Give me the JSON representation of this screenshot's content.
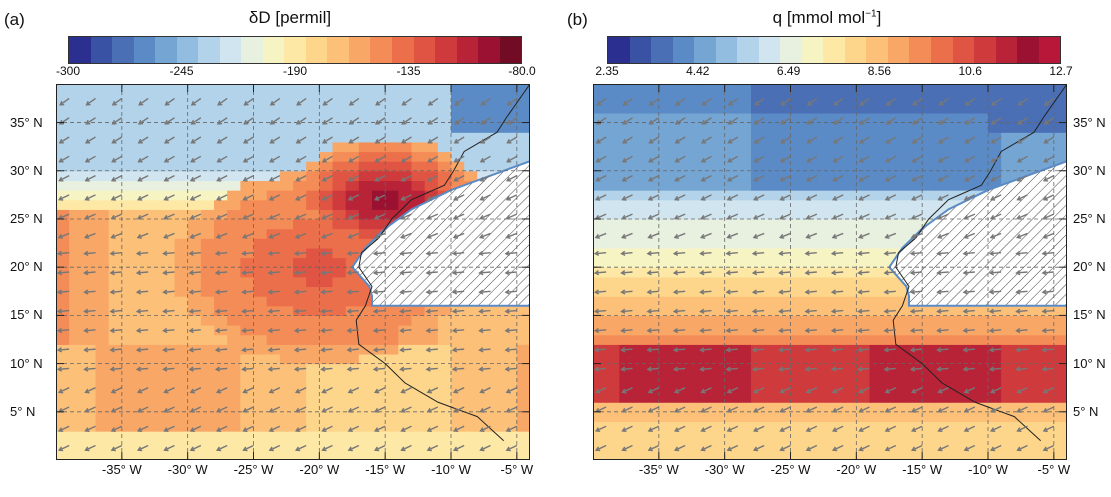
{
  "panels": [
    {
      "id": "a",
      "label": "(a)",
      "title": "δD [permil]",
      "colorbar_ticks": [
        "-300",
        "-245",
        "-190",
        "-135",
        "-80.0"
      ],
      "lat_labels": [
        "35° N",
        "30° N",
        "25° N",
        "20° N",
        "15° N",
        "10° N",
        "5° N"
      ],
      "lon_labels": [
        "-35° W",
        "-30° W",
        "-25° W",
        "-20° W",
        "-15° W",
        "-10° W",
        "-5° W"
      ],
      "colors": [
        "#2b2f8f",
        "#3a52a3",
        "#4a6fb5",
        "#5b8bc6",
        "#74a5d3",
        "#92bde0",
        "#b2d3ea",
        "#d0e5ef",
        "#e8f0e0",
        "#f7f4c4",
        "#fde8a6",
        "#fdd68b",
        "#fcc078",
        "#f9a767",
        "#f48c57",
        "#ec6f4b",
        "#e05443",
        "#cf3a3d",
        "#b82338",
        "#9a1131",
        "#720c25"
      ],
      "colors_note_hex": true,
      "lat_label_side": "left"
    },
    {
      "id": "b",
      "label": "(b)",
      "title": "q [mmol mol",
      "title_sup": "−1",
      "title_end": "]",
      "colorbar_ticks": [
        "2.35",
        "4.42",
        "6.49",
        "8.56",
        "10.6",
        "12.7"
      ],
      "lat_labels": [
        "35° N",
        "30° N",
        "25° N",
        "20° N",
        "15° N",
        "10° N",
        "5° N"
      ],
      "lon_labels": [
        "-35° W",
        "-30° W",
        "-25° W",
        "-20° W",
        "-15° W",
        "-10° W",
        "-5° W"
      ],
      "colors": [
        "#2b2f8f",
        "#3a52a3",
        "#4a6fb5",
        "#5b8bc6",
        "#74a5d3",
        "#92bde0",
        "#b2d3ea",
        "#d0e5ef",
        "#e8f0e0",
        "#f7f4c4",
        "#fde8a6",
        "#fdd68b",
        "#fcc078",
        "#f9a767",
        "#f48c57",
        "#ec6f4b",
        "#e05443",
        "#cf3a3d",
        "#b82338",
        "#9a1131",
        "#b8173a"
      ],
      "lat_label_side": "right"
    }
  ]
}
